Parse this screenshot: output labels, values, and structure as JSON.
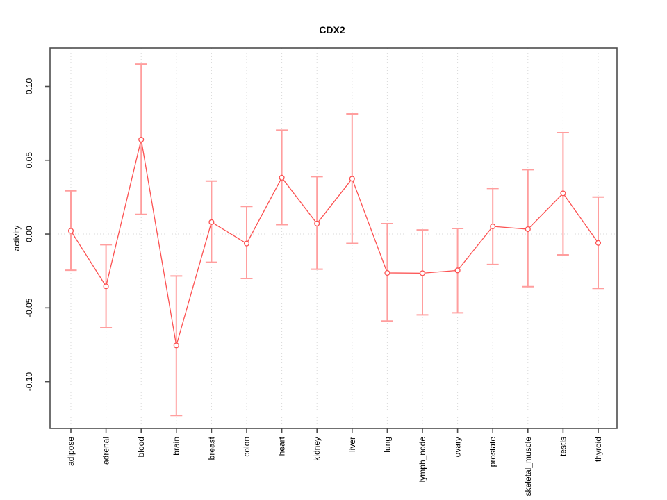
{
  "chart_data": {
    "type": "line",
    "subtype": "points-with-error-bars",
    "title": "CDX2",
    "xlabel": "",
    "ylabel": "activity",
    "categories": [
      "adipose",
      "adrenal",
      "blood",
      "brain",
      "breast",
      "colon",
      "heart",
      "kidney",
      "liver",
      "lung",
      "lymph_node",
      "ovary",
      "prostate",
      "skeletal_muscle",
      "testis",
      "thyroid"
    ],
    "series": [
      {
        "name": "activity",
        "values": [
          0.0022,
          -0.0354,
          0.064,
          -0.0754,
          0.0081,
          -0.0064,
          0.0382,
          0.0071,
          0.0375,
          -0.0263,
          -0.0265,
          -0.0246,
          0.0052,
          0.0033,
          0.0276,
          -0.006
        ],
        "ci_low": [
          -0.0245,
          -0.0635,
          0.0133,
          -0.1229,
          -0.0191,
          -0.0301,
          0.0064,
          -0.0238,
          -0.0063,
          -0.0589,
          -0.0547,
          -0.0533,
          -0.0206,
          -0.0356,
          -0.0141,
          -0.0368
        ],
        "ci_high": [
          0.0293,
          -0.0072,
          0.1152,
          -0.0284,
          0.0359,
          0.0187,
          0.0704,
          0.0389,
          0.0814,
          0.0071,
          0.0028,
          0.0038,
          0.0309,
          0.0436,
          0.0687,
          0.0251
        ]
      }
    ],
    "yticks": [
      "-0.10",
      "-0.05",
      "0.00",
      "0.05",
      "0.10"
    ],
    "ylim": [
      -0.1317,
      0.1261
    ],
    "grid": {
      "vertical_dotted_per_category": true,
      "dotted_zero_line": true
    },
    "legend": "none",
    "colors": {
      "point_and_line": "#fc5151",
      "error_bar": "#ff9e9e",
      "gridline": "#d8d8d8",
      "axis_box": "#4c4c4c",
      "background": "#ffffff",
      "text": "#000000"
    }
  }
}
